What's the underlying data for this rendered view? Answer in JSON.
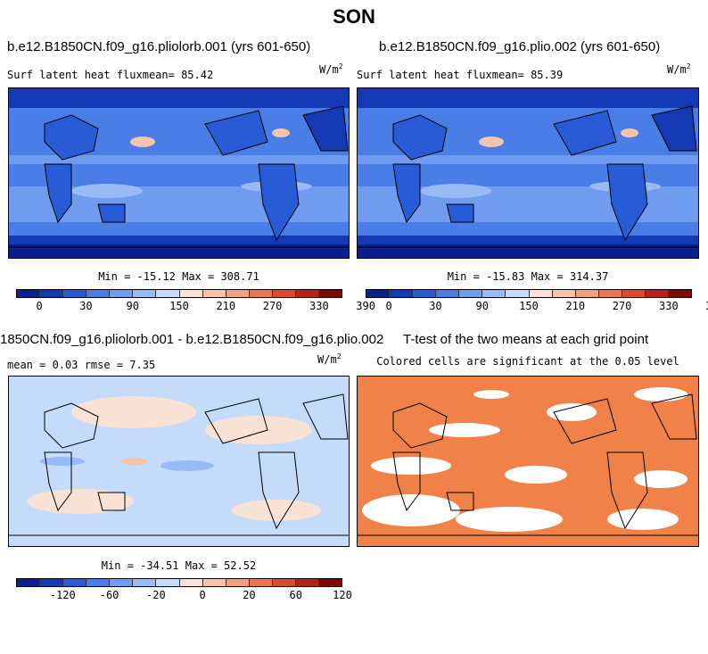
{
  "title": "SON",
  "panels": {
    "p1": {
      "title": "b.e12.B1850CN.f09_g16.pliolorb.001 (yrs 601-650)",
      "left_label": "Surf latent heat fluxmean=  85.42",
      "units": "W/m",
      "units_exp": "2",
      "stats": "Min = -15.12 Max = 308.71"
    },
    "p2": {
      "title": "b.e12.B1850CN.f09_g16.plio.002 (yrs 601-650)",
      "left_label": "Surf latent heat fluxmean=  85.39",
      "units": "W/m",
      "units_exp": "2",
      "stats": "Min = -15.83 Max = 314.37"
    },
    "p3": {
      "title": "1850CN.f09_g16.pliolorb.001 - b.e12.B1850CN.f09_g16.plio.002",
      "left_label": "mean =   0.03    rmse =   7.35",
      "units": "W/m",
      "units_exp": "2",
      "stats": "Min = -34.51 Max = 52.52"
    },
    "p4": {
      "title": "T-test of the two means at each grid point",
      "subtitle": "Colored cells are significant at the 0.05 level"
    }
  },
  "colorbars": {
    "abs": {
      "colors": [
        "#0a1e8c",
        "#1339b5",
        "#2a5bd6",
        "#4a7ee6",
        "#6f9cef",
        "#98baf5",
        "#c5dbfa",
        "#f8e2d6",
        "#f6c4ac",
        "#f2a07f",
        "#ea7650",
        "#d84b2b",
        "#b52317",
        "#7b0b0b"
      ],
      "labels": [
        "0",
        "30",
        "90",
        "150",
        "210",
        "270",
        "330",
        "390"
      ]
    },
    "diff": {
      "colors": [
        "#0a1e8c",
        "#1339b5",
        "#2a5bd6",
        "#4a7ee6",
        "#6f9cef",
        "#98baf5",
        "#c5dbfa",
        "#f8e2d6",
        "#f6c4ac",
        "#f2a07f",
        "#ea7650",
        "#d84b2b",
        "#b52317",
        "#7b0b0b"
      ],
      "labels": [
        "-120",
        "-60",
        "-20",
        "0",
        "20",
        "60",
        "120"
      ]
    }
  },
  "chart_data": [
    {
      "type": "heatmap",
      "title": "b.e12.B1850CN.f09_g16.pliolorb.001 (yrs 601-650)",
      "variable": "Surf latent heat flux",
      "mean": 85.42,
      "min": -15.12,
      "max": 308.71,
      "units": "W/m^2",
      "levels": [
        0,
        30,
        90,
        150,
        210,
        270,
        330,
        390
      ]
    },
    {
      "type": "heatmap",
      "title": "b.e12.B1850CN.f09_g16.plio.002 (yrs 601-650)",
      "variable": "Surf latent heat flux",
      "mean": 85.39,
      "min": -15.83,
      "max": 314.37,
      "units": "W/m^2",
      "levels": [
        0,
        30,
        90,
        150,
        210,
        270,
        330,
        390
      ]
    },
    {
      "type": "heatmap",
      "title": "1850CN.f09_g16.pliolorb.001 - b.e12.B1850CN.f09_g16.plio.002",
      "mean": 0.03,
      "rmse": 7.35,
      "min": -34.51,
      "max": 52.52,
      "units": "W/m^2",
      "levels": [
        -120,
        -60,
        -20,
        0,
        20,
        60,
        120
      ]
    },
    {
      "type": "heatmap",
      "title": "T-test of the two means at each grid point",
      "subtitle": "Colored cells are significant at the 0.05 level",
      "significance_level": 0.05,
      "color": "#f08148"
    }
  ]
}
